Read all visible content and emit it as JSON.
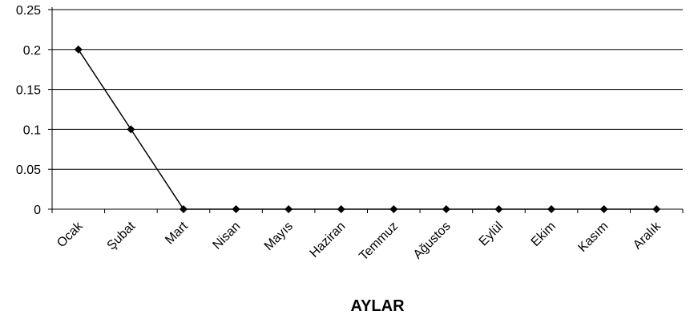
{
  "chart_data": {
    "type": "line",
    "title": "",
    "xlabel": "AYLAR",
    "ylabel": "",
    "categories": [
      "Ocak",
      "Şubat",
      "Mart",
      "Nisan",
      "Mayıs",
      "Haziran",
      "Temmuz",
      "Ağustos",
      "Eylül",
      "Ekim",
      "Kasım",
      "Aralık"
    ],
    "series": [
      {
        "values": [
          0.2,
          0.1,
          0,
          0,
          0,
          0,
          0,
          0,
          0,
          0,
          0,
          0
        ],
        "color": "#000000",
        "marker": "diamond"
      }
    ],
    "ylim": [
      0,
      0.25
    ],
    "yticks": [
      0,
      0.05,
      0.1,
      0.15,
      0.2,
      0.25
    ],
    "ytick_labels": [
      "0",
      "0.05",
      "0.1",
      "0.15",
      "0.2",
      "0.25"
    ],
    "grid": true,
    "legend": "none"
  }
}
